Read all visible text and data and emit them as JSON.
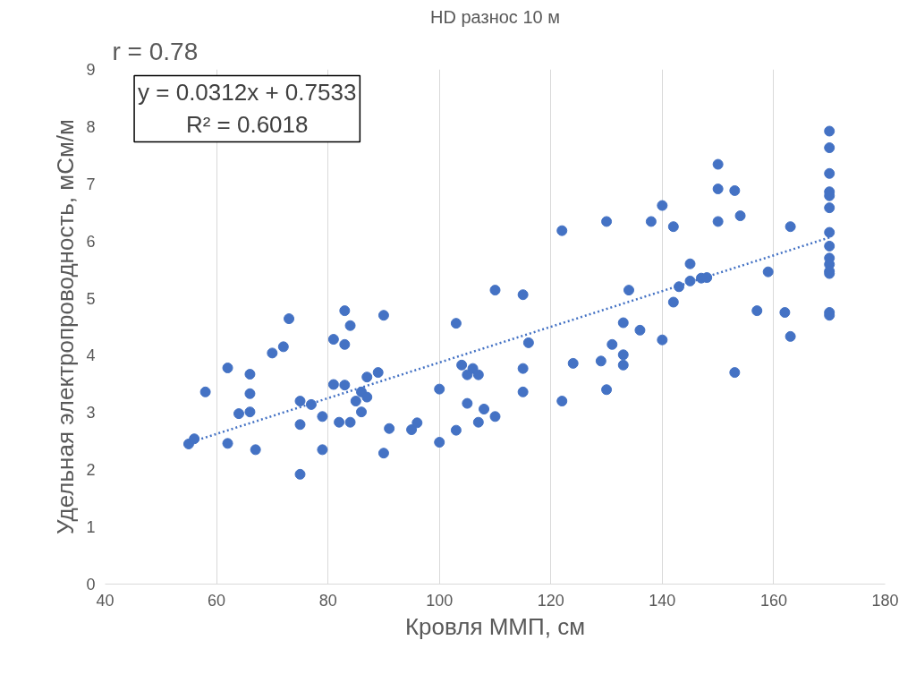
{
  "chart_data": {
    "type": "scatter",
    "title": "HD разнос 10 м",
    "xlabel": "Кровля ММП, см",
    "ylabel": "Удельная электропроводность, мСм/м",
    "xlim": [
      40,
      180
    ],
    "xticks": [
      40,
      60,
      80,
      100,
      120,
      140,
      160,
      180
    ],
    "ylim": [
      0,
      9
    ],
    "yticks": [
      0,
      1,
      2,
      3,
      4,
      5,
      6,
      7,
      8,
      9
    ],
    "grid": "x",
    "marker": "circle",
    "annotations": [
      "r = 0.78",
      "y = 0.0312x + 0.7533\nR² = 0.6018"
    ],
    "series": [
      {
        "color": "#4472c4",
        "x": [
          55,
          56,
          58,
          62,
          62,
          64,
          66,
          66,
          66,
          67,
          70,
          72,
          73,
          75,
          75,
          75,
          77,
          79,
          79,
          81,
          81,
          82,
          83,
          83,
          83,
          84,
          84,
          85,
          86,
          86,
          87,
          87,
          89,
          90,
          90,
          91,
          95,
          96,
          100,
          100,
          103,
          103,
          104,
          105,
          105,
          106,
          107,
          107,
          108,
          110,
          110,
          115,
          115,
          115,
          116,
          122,
          122,
          124,
          129,
          130,
          130,
          131,
          133,
          133,
          133,
          134,
          136,
          138,
          140,
          140,
          142,
          142,
          143,
          145,
          145,
          147,
          148,
          150,
          150,
          150,
          153,
          153,
          154,
          157,
          159,
          162,
          163,
          163,
          170,
          170,
          170,
          170,
          170,
          170,
          170,
          170,
          170,
          170,
          170,
          170,
          170,
          170
        ],
        "values": [
          2.45,
          2.54,
          3.36,
          3.78,
          2.46,
          2.98,
          3.67,
          3.33,
          3.01,
          2.35,
          4.04,
          4.15,
          4.64,
          3.2,
          2.79,
          1.92,
          3.14,
          2.93,
          2.35,
          4.28,
          3.49,
          2.83,
          4.78,
          4.19,
          3.48,
          4.52,
          2.83,
          3.2,
          3.36,
          3.01,
          3.62,
          3.27,
          3.7,
          4.7,
          2.29,
          2.72,
          2.7,
          2.82,
          3.41,
          2.48,
          4.56,
          2.69,
          3.83,
          3.66,
          3.16,
          3.77,
          3.66,
          2.83,
          3.06,
          5.14,
          2.93,
          5.06,
          3.77,
          3.36,
          4.22,
          6.18,
          3.2,
          3.86,
          3.9,
          6.34,
          3.4,
          4.19,
          4.57,
          4.01,
          3.83,
          5.14,
          4.44,
          6.34,
          6.62,
          4.27,
          6.25,
          4.93,
          5.2,
          5.6,
          5.3,
          5.35,
          5.36,
          7.34,
          6.91,
          6.34,
          6.88,
          3.7,
          6.44,
          4.78,
          5.46,
          4.75,
          6.25,
          4.33,
          7.92,
          7.63,
          7.18,
          6.86,
          6.79,
          6.58,
          6.15,
          5.91,
          5.7,
          5.59,
          5.47,
          5.43,
          4.75,
          4.7
        ]
      },
      {
        "type": "line",
        "color": "#4472c4",
        "line_style": "dotted",
        "marker": "none",
        "x": [
          55,
          170
        ],
        "values": [
          2.47,
          6.06
        ]
      }
    ]
  }
}
